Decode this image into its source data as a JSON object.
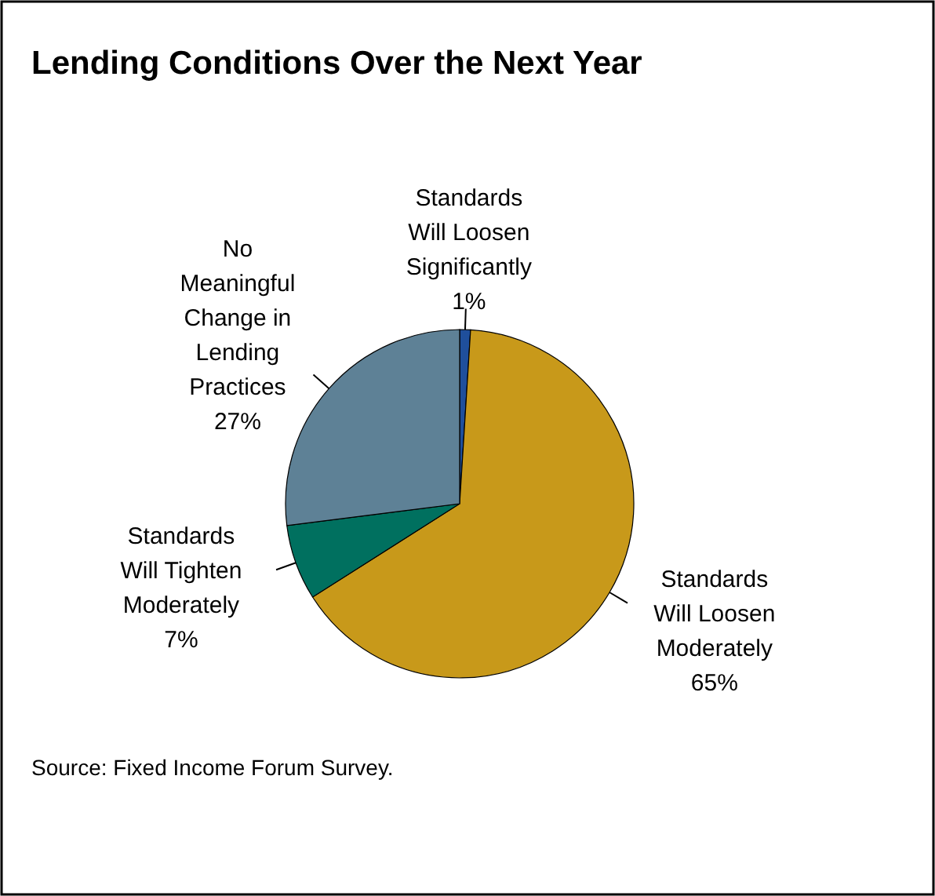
{
  "chart_data": {
    "type": "pie",
    "title": "Lending Conditions Over the Next Year",
    "categories": [
      "Standards Will Loosen Significantly",
      "Standards Will Loosen Moderately",
      "Standards Will Tighten Moderately",
      "No Meaningful Change in Lending Practices"
    ],
    "values": [
      1,
      65,
      7,
      27
    ],
    "colors": [
      "#1f4f9c",
      "#c8991a",
      "#00705f",
      "#5e8196"
    ],
    "value_labels": [
      "1%",
      "65%",
      "7%",
      "27%"
    ],
    "annotations": [
      "Source: Fixed Income Forum Survey."
    ]
  }
}
